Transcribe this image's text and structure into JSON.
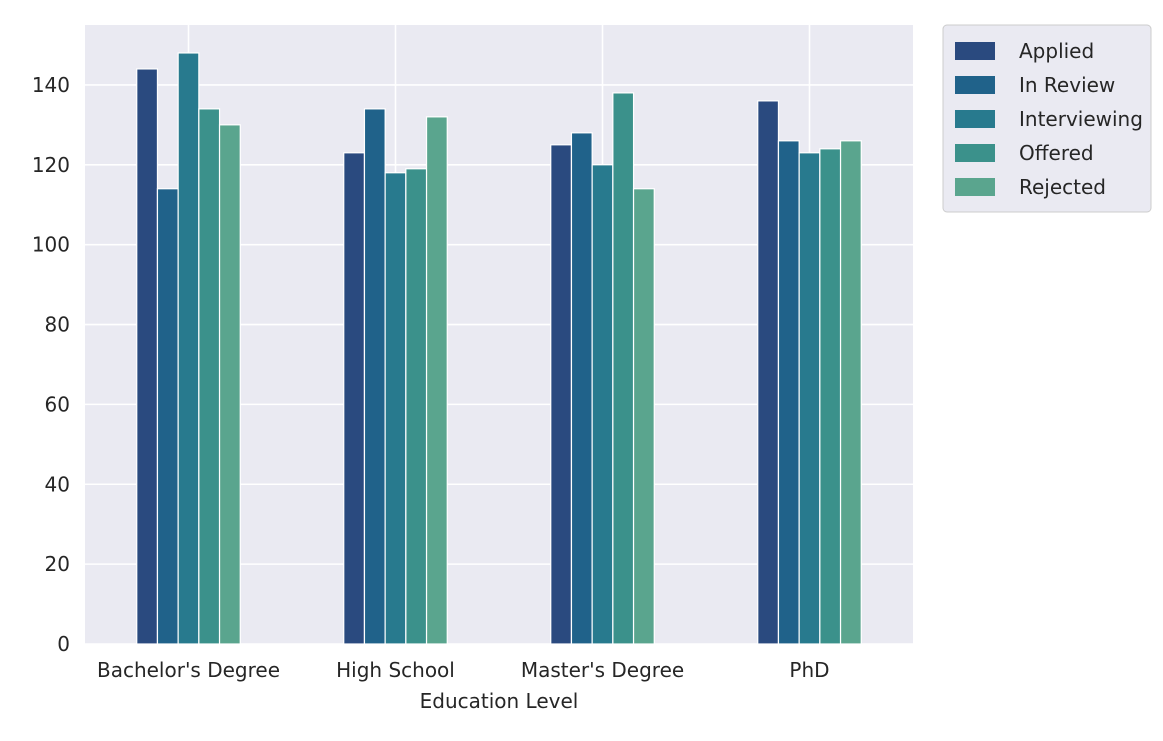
{
  "chart_data": {
    "type": "bar",
    "title": "",
    "xlabel": "Education Level",
    "ylabel": "",
    "categories": [
      "Bachelor's Degree",
      "High School",
      "Master's Degree",
      "PhD"
    ],
    "series": [
      {
        "name": "Applied",
        "values": [
          144,
          123,
          125,
          136
        ],
        "color": "#2a4a7f"
      },
      {
        "name": "In Review",
        "values": [
          114,
          134,
          128,
          126
        ],
        "color": "#20628a"
      },
      {
        "name": "Interviewing",
        "values": [
          148,
          118,
          120,
          123
        ],
        "color": "#287a8e"
      },
      {
        "name": "Offered",
        "values": [
          134,
          119,
          138,
          124
        ],
        "color": "#3b918b"
      },
      {
        "name": "Rejected",
        "values": [
          130,
          132,
          114,
          126
        ],
        "color": "#5aa58e"
      }
    ],
    "ylim": [
      0,
      155
    ],
    "yticks": [
      0,
      20,
      40,
      60,
      80,
      100,
      120,
      140
    ],
    "grid": true,
    "legend_position": "outside-top-right",
    "colors": {
      "plot_background": "#eaeaf2",
      "grid": "#ffffff",
      "text": "#262626"
    }
  }
}
